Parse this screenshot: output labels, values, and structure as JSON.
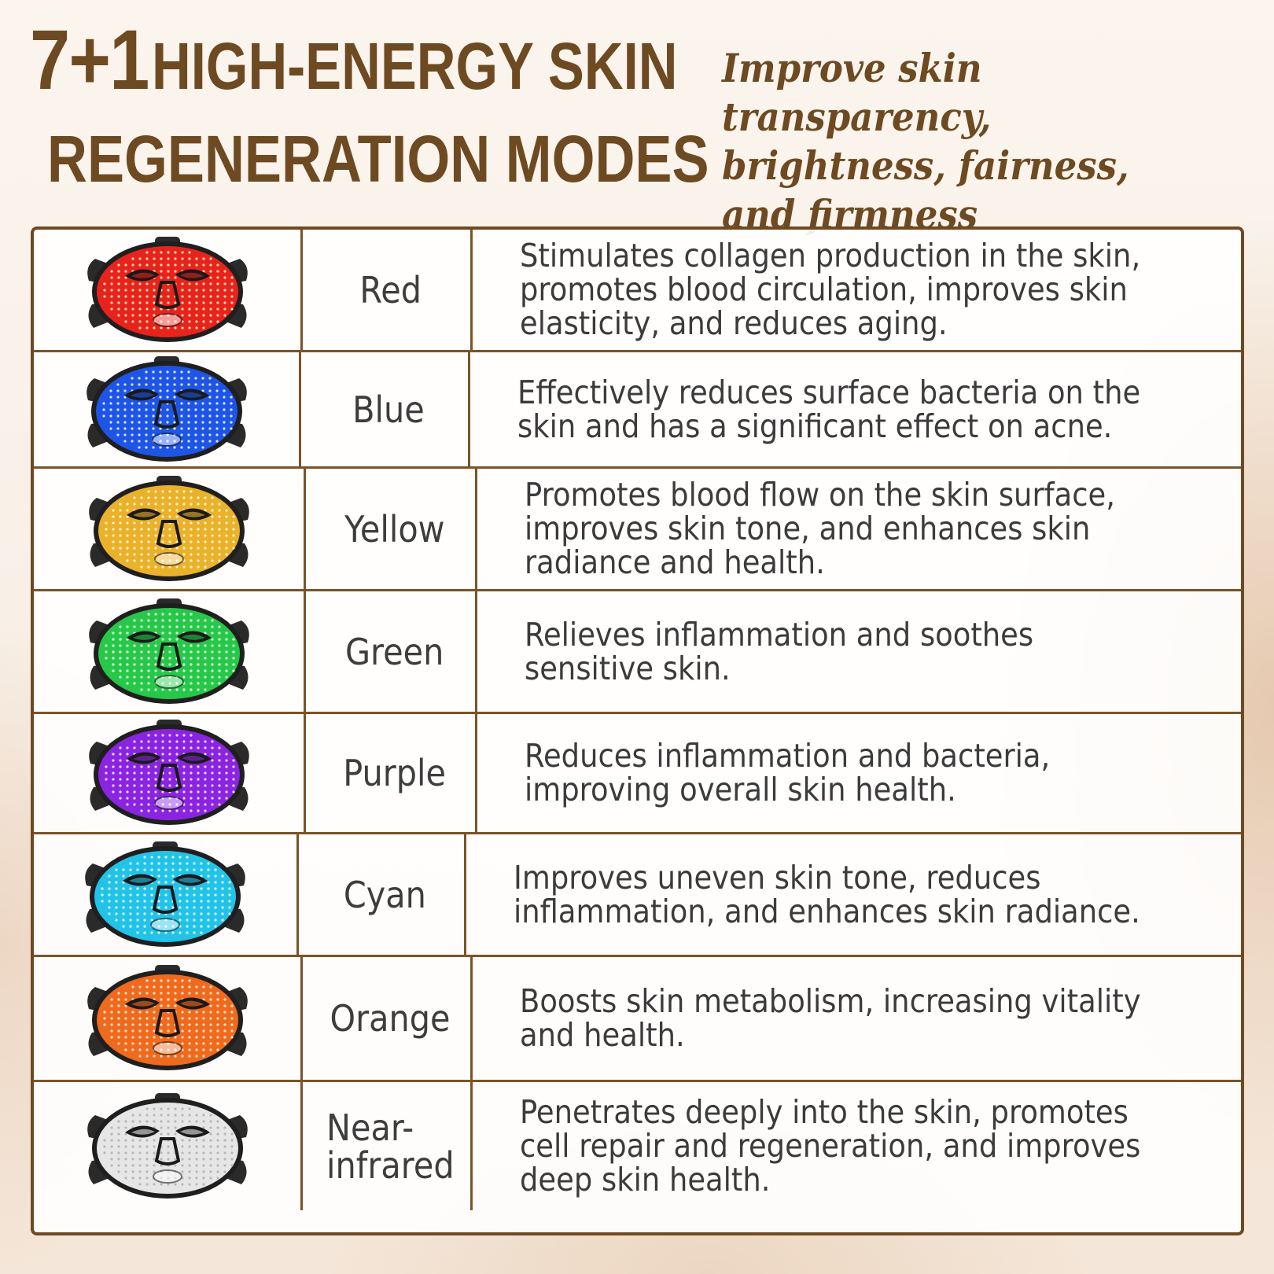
{
  "header": {
    "title_number": "7+1",
    "title_line1": "HIGH-ENERGY SKIN",
    "title_line2": "REGENERATION MODES",
    "tagline": "Improve skin transparency, brightness, fairness, and firmness"
  },
  "modes": [
    {
      "name": "Red",
      "description": "Stimulates collagen production in the skin, promotes blood circulation, improves skin elasticity, and reduces aging.",
      "color": "#e8231c",
      "dot": "#ffd4b0"
    },
    {
      "name": "Blue",
      "description": "Effectively reduces surface bacteria on the skin and has a significant effect on acne.",
      "color": "#1e55e6",
      "dot": "#d6e4ff"
    },
    {
      "name": "Yellow",
      "description": "Promotes blood flow on the skin surface, improves skin tone, and enhances skin radiance and health.",
      "color": "#eab12a",
      "dot": "#fff2c4"
    },
    {
      "name": "Green",
      "description": "Relieves inflammation and soothes sensitive skin.",
      "color": "#27c84a",
      "dot": "#d8ffd8"
    },
    {
      "name": "Purple",
      "description": "Reduces inflammation and bacteria, improving overall skin health.",
      "color": "#8a24e0",
      "dot": "#ecd6ff"
    },
    {
      "name": "Cyan",
      "description": "Improves uneven skin tone, reduces inflammation, and enhances skin radiance.",
      "color": "#22c3e8",
      "dot": "#dafbff"
    },
    {
      "name": "Orange",
      "description": "Boosts skin metabolism, increasing vitality and health.",
      "color": "#f06a1e",
      "dot": "#ffe0c4"
    },
    {
      "name": "Near-infrared",
      "description": "Penetrates deeply into the skin, promotes cell repair and regeneration, and improves deep skin health.",
      "color": "#e6e6e6",
      "dot": "#b8b8b8"
    }
  ]
}
